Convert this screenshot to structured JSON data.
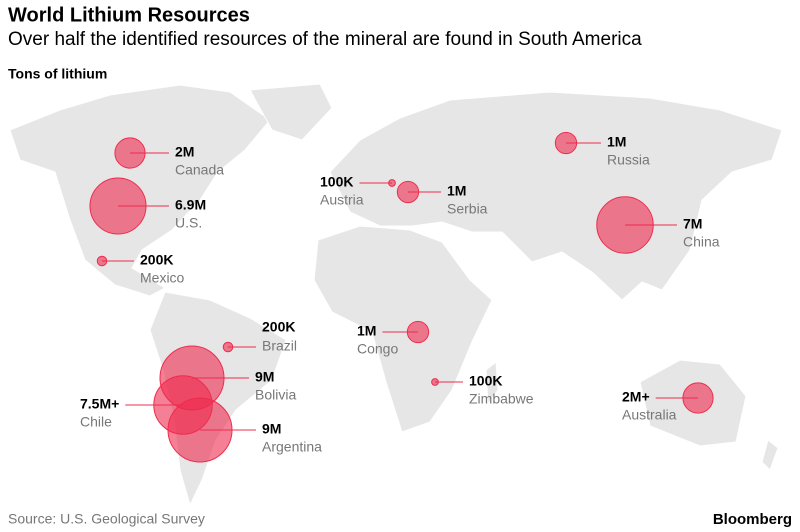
{
  "chart_data": {
    "type": "bubble-map",
    "title": "World Lithium Resources",
    "subtitle": "Over half the identified resources of the mineral are found in South America",
    "unit_label": "Tons of lithium",
    "source": "Source: U.S. Geological Survey",
    "brand": "Bloomberg",
    "color": "#ee2c4e",
    "categories": [
      "Canada",
      "U.S.",
      "Mexico",
      "Brazil",
      "Bolivia",
      "Chile",
      "Argentina",
      "Austria",
      "Serbia",
      "Russia",
      "China",
      "Congo",
      "Zimbabwe",
      "Australia"
    ],
    "values": [
      2000000,
      6900000,
      200000,
      200000,
      9000000,
      7500000,
      9000000,
      100000,
      1000000,
      1000000,
      7000000,
      1000000,
      100000,
      2000000
    ],
    "value_labels": [
      "2M",
      "6.9M",
      "200K",
      "200K",
      "9M",
      "7.5M+",
      "9M",
      "100K",
      "1M",
      "1M",
      "7M",
      "1M",
      "100K",
      "2M+"
    ]
  }
}
